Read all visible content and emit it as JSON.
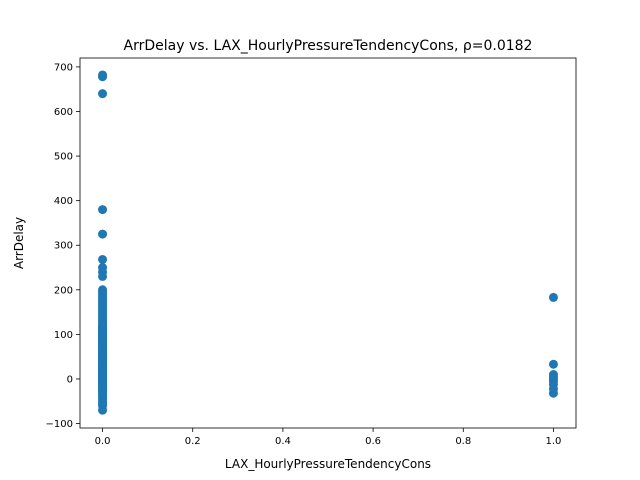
{
  "chart_data": {
    "type": "scatter",
    "title": "ArrDelay vs. LAX_HourlyPressureTendencyCons, ρ=0.0182",
    "xlabel": "LAX_HourlyPressureTendencyCons",
    "ylabel": "ArrDelay",
    "xlim": [
      -0.05,
      1.05
    ],
    "ylim": [
      -110,
      720
    ],
    "xticks": [
      0.0,
      0.2,
      0.4,
      0.6,
      0.8,
      1.0
    ],
    "xtick_labels": [
      "0.0",
      "0.2",
      "0.4",
      "0.6",
      "0.8",
      "1.0"
    ],
    "yticks": [
      -100,
      0,
      100,
      200,
      300,
      400,
      500,
      600,
      700
    ],
    "ytick_labels": [
      "−100",
      "0",
      "100",
      "200",
      "300",
      "400",
      "500",
      "600",
      "700"
    ],
    "grid": false,
    "marker_color": "#1f77b4",
    "series": [
      {
        "x": [
          0,
          0,
          0,
          0,
          0,
          0,
          0,
          0,
          0,
          0,
          0,
          0,
          0,
          0,
          0,
          0,
          0,
          0,
          0,
          0,
          0,
          0,
          0,
          0,
          0,
          0,
          0,
          0,
          0,
          0,
          0,
          0,
          0,
          0,
          0,
          0,
          0,
          0,
          0,
          0,
          0,
          0,
          0,
          0,
          0,
          0,
          0,
          0,
          0,
          0,
          0,
          0,
          0,
          0,
          0,
          0,
          0,
          0,
          0,
          0,
          0,
          0,
          0,
          0,
          0,
          0,
          0,
          0,
          0,
          0,
          0,
          0,
          0,
          0,
          0,
          0,
          0,
          0,
          0,
          0,
          0,
          0,
          0,
          0,
          0,
          0,
          0,
          0,
          0,
          0,
          0,
          0,
          0,
          0,
          0,
          0,
          0,
          1,
          1,
          1,
          1,
          1,
          1,
          1,
          1,
          1
        ],
        "y": [
          682,
          678,
          640,
          380,
          325,
          268,
          250,
          240,
          230,
          200,
          195,
          185,
          180,
          170,
          160,
          150,
          140,
          130,
          120,
          115,
          110,
          105,
          100,
          95,
          90,
          85,
          80,
          75,
          70,
          65,
          60,
          55,
          50,
          45,
          40,
          35,
          30,
          25,
          20,
          15,
          10,
          5,
          0,
          -5,
          -10,
          -15,
          -20,
          -25,
          -30,
          -35,
          -40,
          -45,
          -50,
          -55,
          -60,
          -70,
          -2,
          -4,
          -6,
          -8,
          -12,
          -18,
          -22,
          -28,
          2,
          4,
          6,
          8,
          12,
          18,
          22,
          28,
          33,
          37,
          42,
          47,
          52,
          57,
          62,
          67,
          72,
          77,
          82,
          87,
          92,
          97,
          102,
          108,
          112,
          118,
          125,
          135,
          145,
          155,
          165,
          175,
          190,
          183,
          33,
          10,
          5,
          0,
          -5,
          -12,
          -22,
          -32
        ]
      }
    ]
  }
}
